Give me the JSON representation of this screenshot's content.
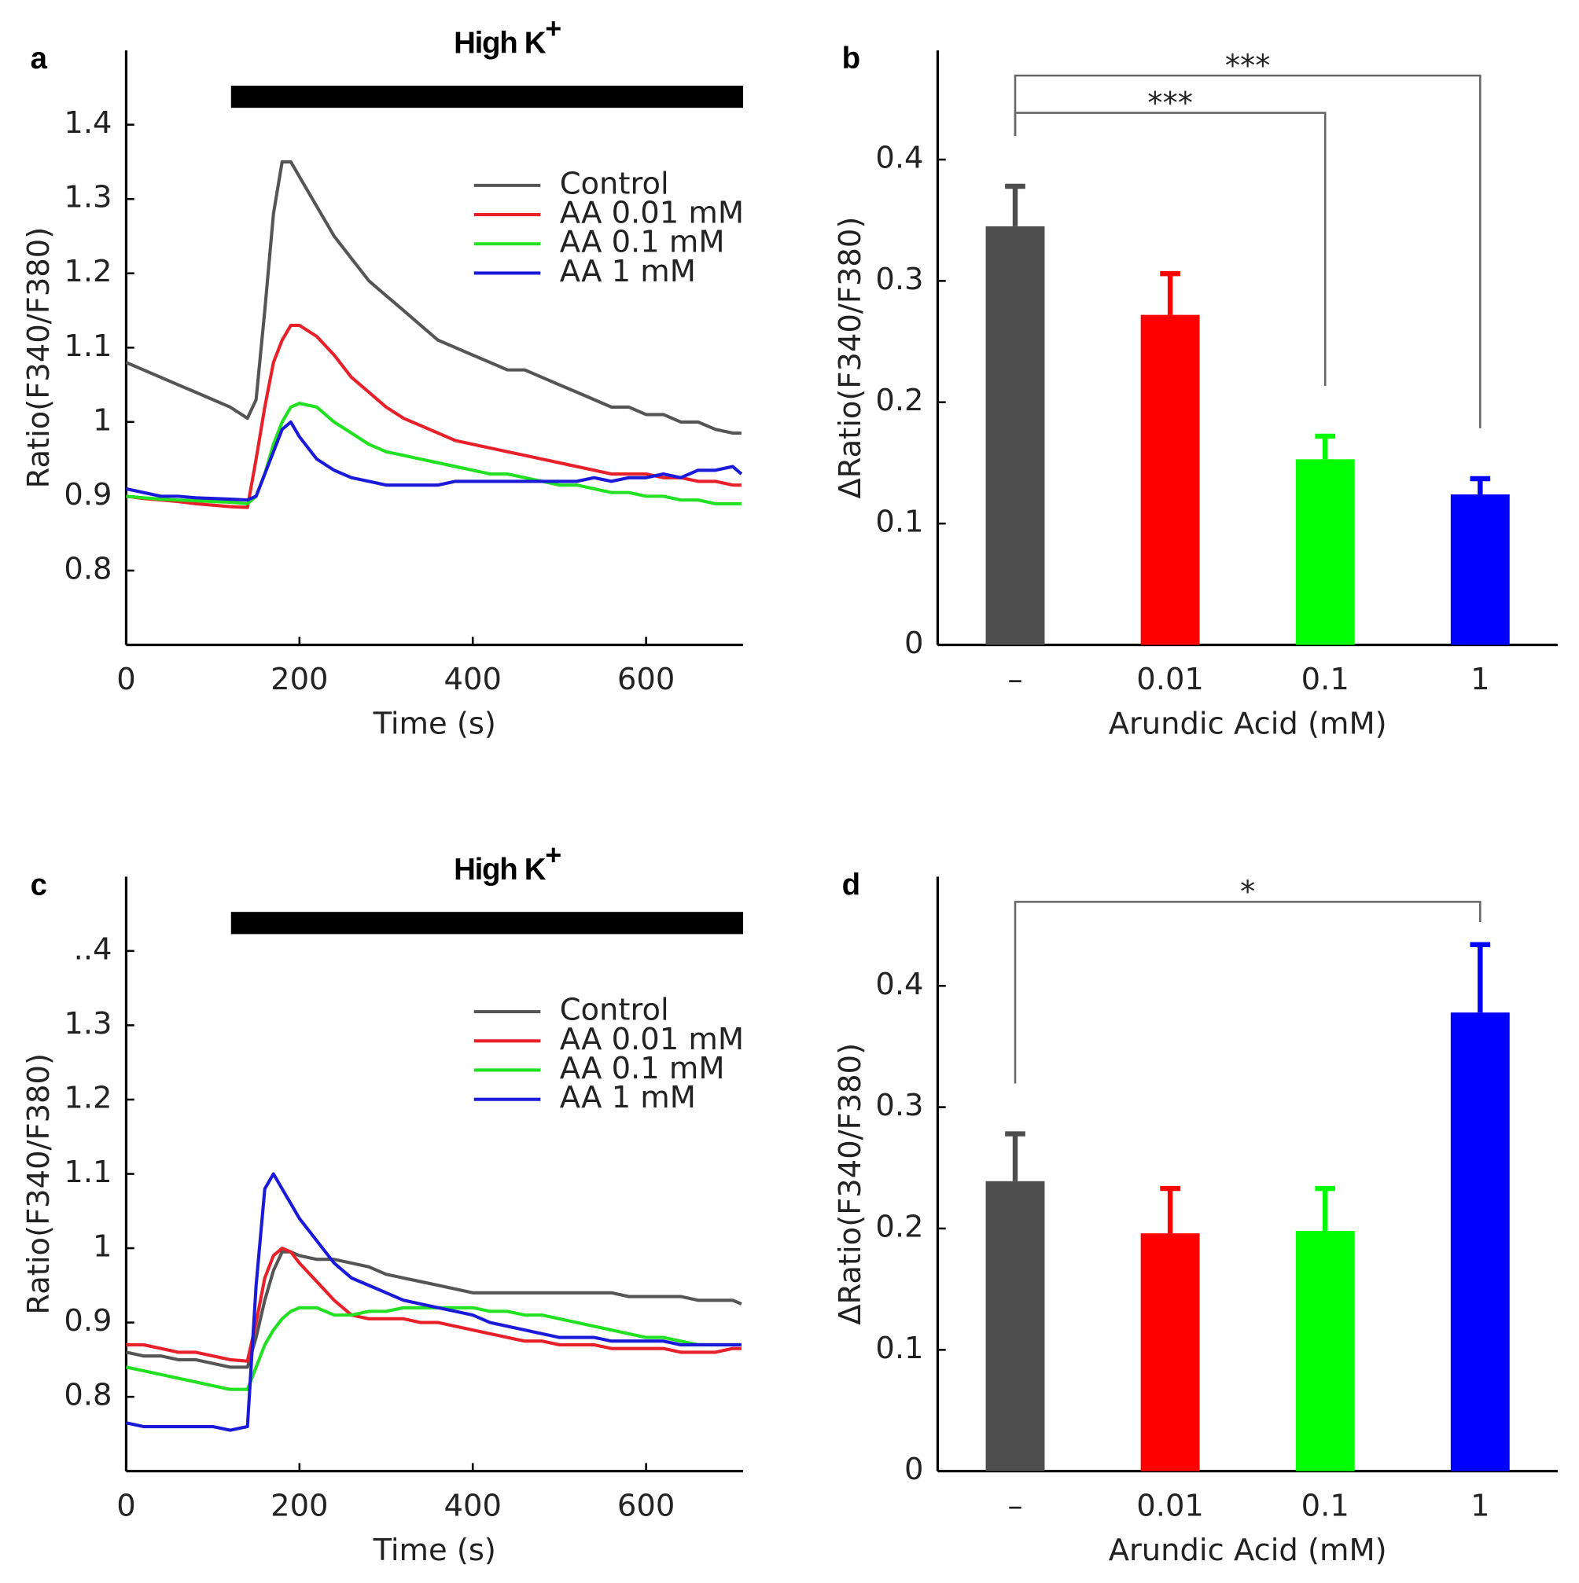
{
  "chart_data": [
    {
      "type": "line",
      "panel_label": "a",
      "annotation": {
        "text": "High K",
        "sup": "+",
        "x": [
          121,
          712
        ]
      },
      "xlabel": "Time (s)",
      "ylabel": "Ratio(F340/F380)",
      "x": [
        0,
        20,
        40,
        60,
        80,
        100,
        120,
        140,
        150,
        160,
        170,
        180,
        190,
        200,
        220,
        240,
        260,
        280,
        300,
        320,
        340,
        360,
        380,
        400,
        420,
        440,
        460,
        480,
        500,
        520,
        540,
        560,
        580,
        600,
        620,
        640,
        660,
        680,
        700,
        710
      ],
      "xlim": [
        0,
        712
      ],
      "xticks": [
        0,
        200,
        400,
        600
      ],
      "ylim": [
        0.7,
        1.5
      ],
      "yticks": [
        0.8,
        0.9,
        1,
        1.1,
        1.2,
        1.3,
        1.4
      ],
      "legend": "upper right",
      "series": [
        {
          "name": "Control",
          "color": "#555555",
          "values": [
            1.08,
            1.07,
            1.06,
            1.05,
            1.04,
            1.03,
            1.02,
            1.005,
            1.03,
            1.15,
            1.28,
            1.35,
            1.35,
            1.33,
            1.29,
            1.25,
            1.22,
            1.19,
            1.17,
            1.15,
            1.13,
            1.11,
            1.1,
            1.09,
            1.08,
            1.07,
            1.07,
            1.06,
            1.05,
            1.04,
            1.03,
            1.02,
            1.02,
            1.01,
            1.01,
            1.0,
            1.0,
            0.99,
            0.985,
            0.985
          ]
        },
        {
          "name": "AA 0.01 mM",
          "color": "#e8202a",
          "values": [
            0.9,
            0.897,
            0.895,
            0.893,
            0.89,
            0.888,
            0.886,
            0.885,
            0.95,
            1.02,
            1.08,
            1.11,
            1.13,
            1.13,
            1.115,
            1.09,
            1.06,
            1.04,
            1.02,
            1.005,
            0.995,
            0.985,
            0.975,
            0.97,
            0.965,
            0.96,
            0.955,
            0.95,
            0.945,
            0.94,
            0.935,
            0.93,
            0.93,
            0.93,
            0.925,
            0.925,
            0.92,
            0.92,
            0.915,
            0.915
          ]
        },
        {
          "name": "AA 0.1 mM",
          "color": "#22e022",
          "values": [
            0.9,
            0.898,
            0.896,
            0.895,
            0.894,
            0.893,
            0.892,
            0.89,
            0.9,
            0.93,
            0.97,
            1.0,
            1.02,
            1.025,
            1.02,
            1.0,
            0.985,
            0.97,
            0.96,
            0.955,
            0.95,
            0.945,
            0.94,
            0.935,
            0.93,
            0.93,
            0.925,
            0.92,
            0.915,
            0.915,
            0.91,
            0.905,
            0.905,
            0.9,
            0.9,
            0.895,
            0.895,
            0.89,
            0.89,
            0.89
          ]
        },
        {
          "name": "AA 1 mM",
          "color": "#1a1ad8",
          "values": [
            0.91,
            0.905,
            0.9,
            0.9,
            0.898,
            0.897,
            0.896,
            0.895,
            0.9,
            0.93,
            0.96,
            0.99,
            1.0,
            0.98,
            0.95,
            0.935,
            0.925,
            0.92,
            0.915,
            0.915,
            0.915,
            0.915,
            0.92,
            0.92,
            0.92,
            0.92,
            0.92,
            0.92,
            0.92,
            0.92,
            0.925,
            0.92,
            0.925,
            0.925,
            0.93,
            0.925,
            0.935,
            0.935,
            0.94,
            0.93
          ]
        }
      ]
    },
    {
      "type": "bar",
      "panel_label": "b",
      "xlabel": "Arundic Acid (mM)",
      "ylabel": "ΔRatio(F340/F380)",
      "categories": [
        "–",
        "0.01",
        "0.1",
        "1"
      ],
      "values": [
        0.345,
        0.272,
        0.153,
        0.124
      ],
      "errors": [
        0.033,
        0.034,
        0.019,
        0.013
      ],
      "colors": [
        "#4d4d4d",
        "#ff0000",
        "#00ff00",
        "#0000ff"
      ],
      "ylim": [
        0,
        0.49
      ],
      "yticks": [
        0,
        0.1,
        0.2,
        0.3,
        0.4
      ],
      "significance": [
        {
          "from": 0,
          "to": 2,
          "label": "***"
        },
        {
          "from": 0,
          "to": 3,
          "label": "***"
        }
      ]
    },
    {
      "type": "line",
      "panel_label": "c",
      "annotation": {
        "text": "High K",
        "sup": "+",
        "x": [
          121,
          712
        ]
      },
      "xlabel": "Time (s)",
      "ylabel": "Ratio(F340/F380)",
      "x": [
        0,
        20,
        40,
        60,
        80,
        100,
        120,
        140,
        150,
        160,
        170,
        180,
        190,
        200,
        220,
        240,
        260,
        280,
        300,
        320,
        340,
        360,
        380,
        400,
        420,
        440,
        460,
        480,
        500,
        520,
        540,
        560,
        580,
        600,
        620,
        640,
        660,
        680,
        700,
        710
      ],
      "xlim": [
        0,
        712
      ],
      "xticks": [
        0,
        200,
        400,
        600
      ],
      "ylim": [
        0.7,
        1.5
      ],
      "yticks": [
        0.8,
        0.9,
        1,
        1.1,
        1.2,
        1.3,
        {
          "value": 1.4,
          "label": "..4"
        }
      ],
      "legend": "upper right",
      "series": [
        {
          "name": "Control",
          "color": "#555555",
          "values": [
            0.86,
            0.855,
            0.855,
            0.85,
            0.85,
            0.845,
            0.84,
            0.84,
            0.88,
            0.93,
            0.97,
            0.995,
            0.995,
            0.99,
            0.985,
            0.985,
            0.98,
            0.975,
            0.965,
            0.96,
            0.955,
            0.95,
            0.945,
            0.94,
            0.94,
            0.94,
            0.94,
            0.94,
            0.94,
            0.94,
            0.94,
            0.94,
            0.935,
            0.935,
            0.935,
            0.935,
            0.93,
            0.93,
            0.93,
            0.925
          ]
        },
        {
          "name": "AA 0.01 mM",
          "color": "#e8202a",
          "values": [
            0.87,
            0.87,
            0.865,
            0.86,
            0.86,
            0.855,
            0.85,
            0.848,
            0.9,
            0.96,
            0.99,
            1.0,
            0.995,
            0.98,
            0.955,
            0.93,
            0.91,
            0.905,
            0.905,
            0.905,
            0.9,
            0.9,
            0.895,
            0.89,
            0.885,
            0.88,
            0.875,
            0.875,
            0.87,
            0.87,
            0.87,
            0.865,
            0.865,
            0.865,
            0.865,
            0.86,
            0.86,
            0.86,
            0.865,
            0.865
          ]
        },
        {
          "name": "AA 0.1 mM",
          "color": "#22e022",
          "values": [
            0.84,
            0.835,
            0.83,
            0.825,
            0.82,
            0.815,
            0.81,
            0.81,
            0.84,
            0.87,
            0.89,
            0.905,
            0.915,
            0.92,
            0.92,
            0.91,
            0.91,
            0.915,
            0.915,
            0.92,
            0.92,
            0.92,
            0.92,
            0.92,
            0.915,
            0.915,
            0.91,
            0.91,
            0.905,
            0.9,
            0.895,
            0.89,
            0.885,
            0.88,
            0.88,
            0.875,
            0.87,
            0.87,
            0.87,
            0.87
          ]
        },
        {
          "name": "AA 1 mM",
          "color": "#1a1ad8",
          "values": [
            0.765,
            0.76,
            0.76,
            0.76,
            0.76,
            0.76,
            0.755,
            0.76,
            0.95,
            1.08,
            1.1,
            1.08,
            1.06,
            1.04,
            1.01,
            0.98,
            0.96,
            0.95,
            0.94,
            0.93,
            0.925,
            0.92,
            0.915,
            0.91,
            0.9,
            0.895,
            0.89,
            0.885,
            0.88,
            0.88,
            0.88,
            0.875,
            0.875,
            0.875,
            0.875,
            0.87,
            0.87,
            0.87,
            0.87,
            0.87
          ]
        }
      ]
    },
    {
      "type": "bar",
      "panel_label": "d",
      "xlabel": "Arundic Acid (mM)",
      "ylabel": "ΔRatio(F340/F380)",
      "categories": [
        "–",
        "0.01",
        "0.1",
        "1"
      ],
      "values": [
        0.239,
        0.196,
        0.198,
        0.378
      ],
      "errors": [
        0.039,
        0.037,
        0.035,
        0.056
      ],
      "colors": [
        "#4d4d4d",
        "#ff0000",
        "#00ff00",
        "#0000ff"
      ],
      "ylim": [
        0,
        0.49
      ],
      "yticks": [
        0,
        0.1,
        0.2,
        0.3,
        0.4
      ],
      "significance": [
        {
          "from": 0,
          "to": 3,
          "label": "*"
        }
      ]
    }
  ]
}
